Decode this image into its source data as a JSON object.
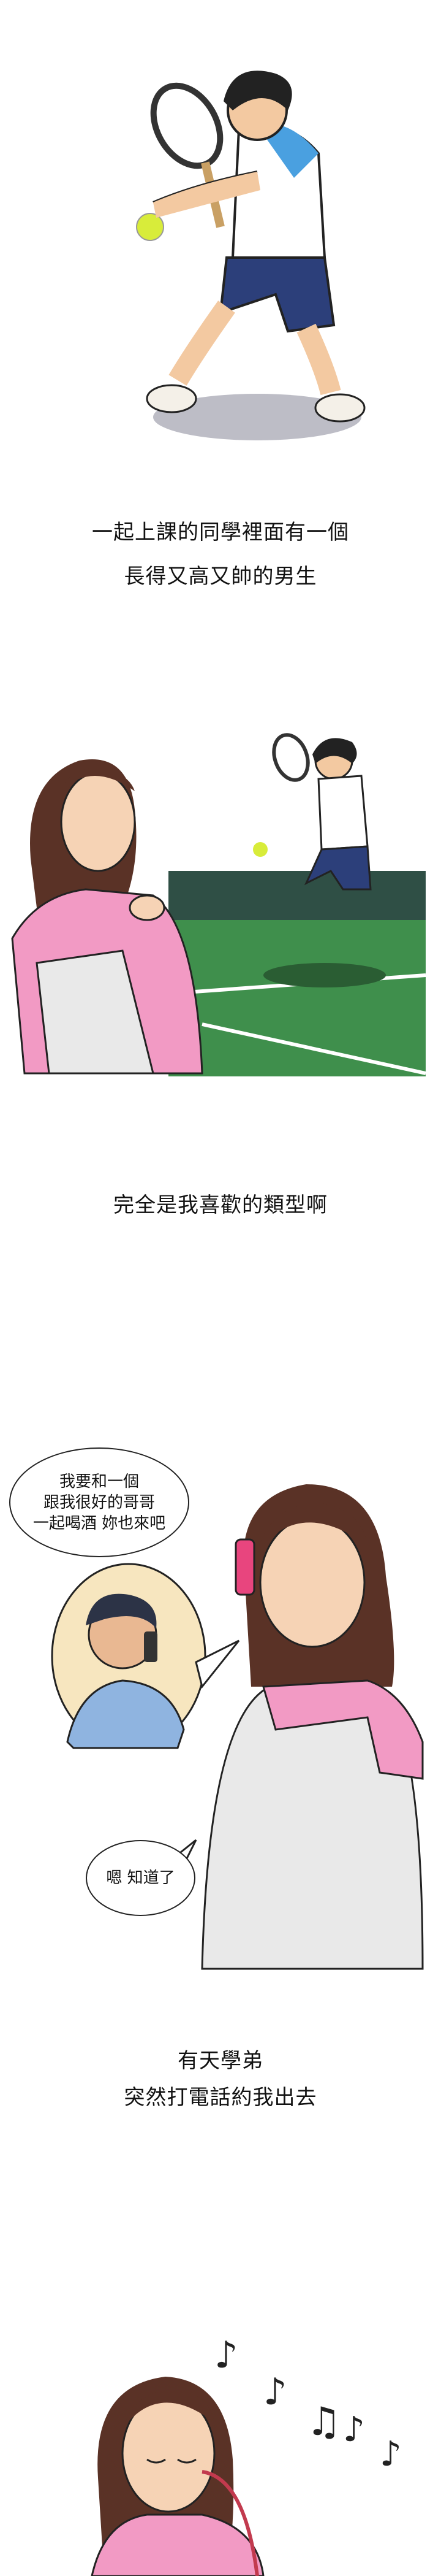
{
  "captions": {
    "p1_line1": "一起上課的同學裡面有一個",
    "p1_line2": "長得又高又帥的男生",
    "p2_line1": "完全是我喜歡的類型啊",
    "p4_line1": "有天學弟",
    "p4_line2": "突然打電話約我出去"
  },
  "bubbles": {
    "call_line1": "我要和一個",
    "call_line2": "跟我很好的哥哥",
    "call_line3": "一起喝酒 妳也來吧",
    "reply": "嗯 知道了"
  },
  "colors": {
    "court_green": "#3f8f4c",
    "court_dark": "#2f4f45",
    "shirt_pink": "#f29ac4",
    "shorts_navy": "#2c3f7a",
    "ball_yellow": "#d8ec3a",
    "hair_brown": "#5a3226"
  }
}
